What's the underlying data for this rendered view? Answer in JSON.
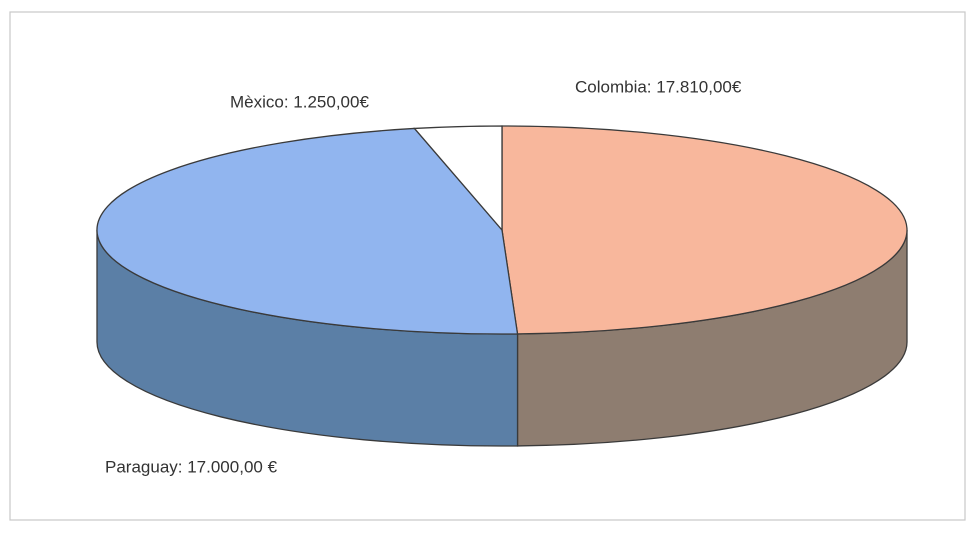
{
  "chart_data": {
    "type": "pie3d",
    "values": [
      17810,
      17000,
      1250
    ],
    "value_labels": [
      "Colombia: 17.810,00€",
      "Paraguay: 17.000,00 €",
      "Mèxico: 1.250,00€"
    ],
    "colors": [
      "#f8b79c",
      "#91b5ef",
      "#ffffff"
    ],
    "side_colors": [
      "#8e7d70",
      "#5b7fa6",
      "#dddddd"
    ]
  }
}
